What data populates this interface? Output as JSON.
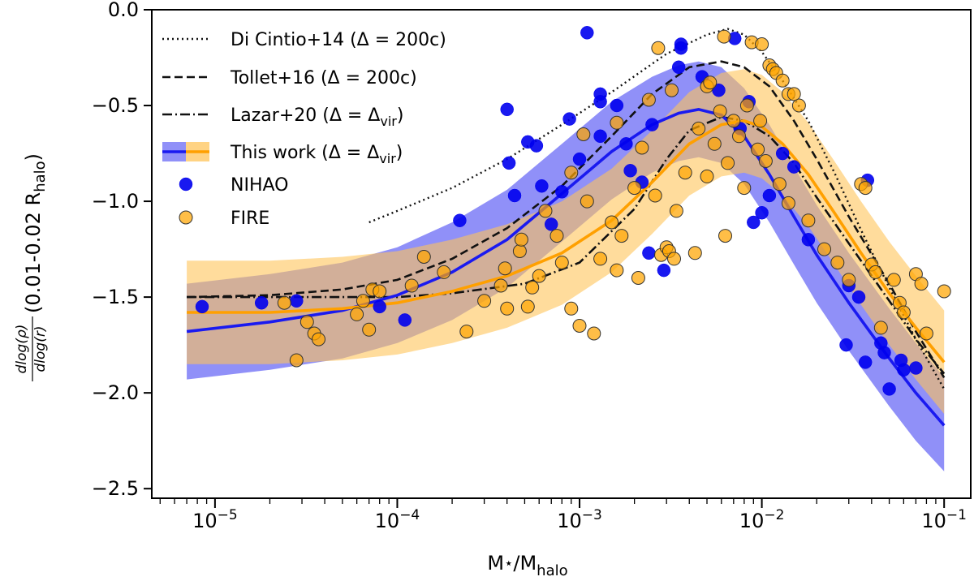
{
  "chart_data": {
    "type": "scatter",
    "xscale": "log",
    "xlim": [
      4.5e-06,
      0.14
    ],
    "ylim": [
      -2.55,
      0.0
    ],
    "xlabel": "M⋆/Mhalo",
    "xlabel_main": "M",
    "xlabel_star": "⋆",
    "xlabel_slash": "/M",
    "xlabel_sub": "halo",
    "ylabel_frac_num": "dlog(ρ)",
    "ylabel_frac_den": "dlog(r)",
    "ylabel_text": "(0.01-0.02 R",
    "ylabel_sub": "halo",
    "ylabel_close": ")",
    "x_ticks": [
      {
        "value": 1e-05,
        "base": "10",
        "exp": "−5"
      },
      {
        "value": 0.0001,
        "base": "10",
        "exp": "−4"
      },
      {
        "value": 0.001,
        "base": "10",
        "exp": "−3"
      },
      {
        "value": 0.01,
        "base": "10",
        "exp": "−2"
      },
      {
        "value": 0.1,
        "base": "10",
        "exp": "−1"
      }
    ],
    "y_ticks": [
      {
        "value": 0.0,
        "label": "0.0"
      },
      {
        "value": -0.5,
        "label": "−0.5"
      },
      {
        "value": -1.0,
        "label": "−1.0"
      },
      {
        "value": -1.5,
        "label": "−1.5"
      },
      {
        "value": -2.0,
        "label": "−2.0"
      },
      {
        "value": -2.5,
        "label": "−2.5"
      }
    ],
    "legend": {
      "position": "top-left",
      "entries": [
        {
          "text": "Di Cintio+14 (Δ = 200c)",
          "style": "dotted"
        },
        {
          "text": "Tollet+16 (Δ = 200c)",
          "style": "dashed"
        },
        {
          "text": "Lazar+20 (Δ = Δ",
          "sub": "vir",
          "close": ")",
          "style": "dashdot"
        },
        {
          "text": "This work (Δ = Δ",
          "sub": "vir",
          "close": ")",
          "style": "band"
        },
        {
          "text": "NIHAO",
          "style": "blue-marker"
        },
        {
          "text": "FIRE",
          "style": "orange-marker"
        }
      ]
    },
    "colors": {
      "nihao": "#0000ee",
      "fire": "#ffa500",
      "blue_line": "#1a1af0",
      "orange_line": "#ffa000",
      "blue_band": "#6b6bf5",
      "orange_band": "#ffc45a",
      "overlap": "#a06e6e"
    },
    "series_lines": [
      {
        "name": "Di Cintio+14 (Δ = 200c)",
        "style": "dotted",
        "x": [
          7e-05,
          0.0001,
          0.0002,
          0.0004,
          0.0008,
          0.0015,
          0.003,
          0.005,
          0.0065,
          0.008,
          0.01,
          0.013,
          0.018,
          0.025,
          0.035,
          0.05,
          0.07,
          0.1
        ],
        "y": [
          -1.11,
          -1.05,
          -0.93,
          -0.78,
          -0.6,
          -0.43,
          -0.23,
          -0.13,
          -0.1,
          -0.13,
          -0.22,
          -0.37,
          -0.58,
          -0.85,
          -1.15,
          -1.45,
          -1.72,
          -1.98
        ]
      },
      {
        "name": "Tollet+16 (Δ = 200c)",
        "style": "dashed",
        "x": [
          7e-06,
          2e-05,
          5e-05,
          0.0001,
          0.0002,
          0.0004,
          0.0008,
          0.0015,
          0.0025,
          0.004,
          0.006,
          0.008,
          0.011,
          0.015,
          0.02,
          0.03,
          0.05,
          0.07,
          0.1
        ],
        "y": [
          -1.5,
          -1.49,
          -1.46,
          -1.41,
          -1.3,
          -1.14,
          -0.92,
          -0.66,
          -0.44,
          -0.3,
          -0.27,
          -0.3,
          -0.4,
          -0.58,
          -0.78,
          -1.08,
          -1.43,
          -1.68,
          -1.92
        ]
      },
      {
        "name": "Lazar+20 (Δ = Δvir)",
        "style": "dashdot",
        "x": [
          7e-06,
          2e-05,
          5e-05,
          0.0001,
          0.0002,
          0.0005,
          0.001,
          0.002,
          0.003,
          0.004,
          0.006,
          0.008,
          0.011,
          0.015,
          0.02,
          0.03,
          0.05,
          0.07,
          0.1
        ],
        "y": [
          -1.5,
          -1.5,
          -1.5,
          -1.5,
          -1.48,
          -1.43,
          -1.32,
          -1.04,
          -0.78,
          -0.63,
          -0.56,
          -0.58,
          -0.66,
          -0.8,
          -0.98,
          -1.22,
          -1.52,
          -1.72,
          -1.9
        ]
      },
      {
        "name": "This work NIHAO",
        "style": "solid-blue",
        "x": [
          7e-06,
          2e-05,
          5e-05,
          0.0001,
          0.0002,
          0.0004,
          0.0008,
          0.0015,
          0.0025,
          0.0035,
          0.0045,
          0.006,
          0.008,
          0.011,
          0.015,
          0.02,
          0.03,
          0.05,
          0.07,
          0.1
        ],
        "y": [
          -1.68,
          -1.63,
          -1.57,
          -1.49,
          -1.37,
          -1.2,
          -0.96,
          -0.74,
          -0.6,
          -0.54,
          -0.52,
          -0.55,
          -0.66,
          -0.86,
          -1.08,
          -1.28,
          -1.53,
          -1.82,
          -2.0,
          -2.17
        ]
      },
      {
        "name": "This work FIRE",
        "style": "solid-orange",
        "x": [
          7e-06,
          2e-05,
          5e-05,
          0.0001,
          0.0002,
          0.0004,
          0.0008,
          0.0015,
          0.0025,
          0.004,
          0.006,
          0.008,
          0.01,
          0.013,
          0.018,
          0.025,
          0.035,
          0.05,
          0.07,
          0.1
        ],
        "y": [
          -1.58,
          -1.58,
          -1.56,
          -1.53,
          -1.47,
          -1.39,
          -1.27,
          -1.1,
          -0.9,
          -0.7,
          -0.6,
          -0.58,
          -0.61,
          -0.7,
          -0.86,
          -1.06,
          -1.27,
          -1.48,
          -1.66,
          -1.84
        ]
      }
    ],
    "bands": [
      {
        "name": "NIHAO band",
        "color_key": "blue_band",
        "x": [
          7e-06,
          2e-05,
          5e-05,
          0.0001,
          0.0002,
          0.0004,
          0.0008,
          0.0015,
          0.0025,
          0.0035,
          0.0045,
          0.006,
          0.008,
          0.011,
          0.015,
          0.02,
          0.03,
          0.05,
          0.07,
          0.1
        ],
        "upper": [
          -1.43,
          -1.38,
          -1.32,
          -1.24,
          -1.11,
          -0.94,
          -0.7,
          -0.48,
          -0.35,
          -0.29,
          -0.27,
          -0.3,
          -0.41,
          -0.6,
          -0.82,
          -1.02,
          -1.27,
          -1.56,
          -1.74,
          -1.92
        ],
        "lower": [
          -1.93,
          -1.88,
          -1.82,
          -1.74,
          -1.62,
          -1.45,
          -1.21,
          -0.99,
          -0.85,
          -0.79,
          -0.77,
          -0.8,
          -0.91,
          -1.11,
          -1.33,
          -1.53,
          -1.78,
          -2.07,
          -2.25,
          -2.41
        ]
      },
      {
        "name": "FIRE band",
        "color_key": "orange_band",
        "x": [
          7e-06,
          2e-05,
          5e-05,
          0.0001,
          0.0002,
          0.0004,
          0.0008,
          0.0015,
          0.0025,
          0.004,
          0.006,
          0.008,
          0.01,
          0.013,
          0.018,
          0.025,
          0.035,
          0.05,
          0.07,
          0.1
        ],
        "upper": [
          -1.31,
          -1.31,
          -1.29,
          -1.26,
          -1.2,
          -1.12,
          -1.0,
          -0.83,
          -0.63,
          -0.43,
          -0.33,
          -0.31,
          -0.34,
          -0.43,
          -0.59,
          -0.79,
          -1.0,
          -1.21,
          -1.39,
          -1.57
        ],
        "lower": [
          -1.85,
          -1.85,
          -1.83,
          -1.8,
          -1.74,
          -1.66,
          -1.54,
          -1.37,
          -1.17,
          -0.97,
          -0.87,
          -0.85,
          -0.88,
          -0.97,
          -1.13,
          -1.33,
          -1.54,
          -1.75,
          -1.93,
          -2.11
        ]
      }
    ],
    "series_points": [
      {
        "name": "NIHAO",
        "color_key": "nihao",
        "points": [
          [
            8.5e-06,
            -1.55
          ],
          [
            1.8e-05,
            -1.53
          ],
          [
            2.8e-05,
            -1.52
          ],
          [
            8e-05,
            -1.55
          ],
          [
            0.00011,
            -1.62
          ],
          [
            0.00022,
            -1.1
          ],
          [
            0.0004,
            -0.52
          ],
          [
            0.00041,
            -0.8
          ],
          [
            0.00044,
            -0.97
          ],
          [
            0.00052,
            -0.69
          ],
          [
            0.00058,
            -0.71
          ],
          [
            0.00062,
            -0.92
          ],
          [
            0.0007,
            -1.12
          ],
          [
            0.0008,
            -0.95
          ],
          [
            0.00088,
            -0.57
          ],
          [
            0.001,
            -0.78
          ],
          [
            0.0011,
            -0.12
          ],
          [
            0.0013,
            -0.44
          ],
          [
            0.0013,
            -0.48
          ],
          [
            0.0013,
            -0.66
          ],
          [
            0.0016,
            -0.5
          ],
          [
            0.0018,
            -0.7
          ],
          [
            0.0022,
            -0.9
          ],
          [
            0.0024,
            -1.27
          ],
          [
            0.0029,
            -1.36
          ],
          [
            0.0035,
            -0.3
          ],
          [
            0.0036,
            -0.18
          ],
          [
            0.0036,
            -0.2
          ],
          [
            0.0047,
            -0.35
          ],
          [
            0.0071,
            -0.15
          ],
          [
            0.009,
            -1.11
          ],
          [
            0.01,
            -1.06
          ],
          [
            0.011,
            -0.97
          ],
          [
            0.013,
            -0.75
          ],
          [
            0.015,
            -0.82
          ],
          [
            0.018,
            -1.2
          ],
          [
            0.029,
            -1.75
          ],
          [
            0.03,
            -1.44
          ],
          [
            0.034,
            -1.5
          ],
          [
            0.037,
            -1.84
          ],
          [
            0.038,
            -0.89
          ],
          [
            0.045,
            -1.74
          ],
          [
            0.047,
            -1.79
          ],
          [
            0.05,
            -1.98
          ],
          [
            0.058,
            -1.83
          ],
          [
            0.06,
            -1.88
          ],
          [
            0.07,
            -1.87
          ],
          [
            0.0019,
            -0.84
          ],
          [
            0.0025,
            -0.6
          ],
          [
            0.0058,
            -0.42
          ],
          [
            0.0076,
            -0.62
          ],
          [
            0.0085,
            -0.48
          ]
        ]
      },
      {
        "name": "FIRE",
        "color_key": "fire",
        "points": [
          [
            2.4e-05,
            -1.53
          ],
          [
            2.8e-05,
            -1.83
          ],
          [
            3.2e-05,
            -1.63
          ],
          [
            3.5e-05,
            -1.69
          ],
          [
            3.7e-05,
            -1.72
          ],
          [
            6.5e-05,
            -1.52
          ],
          [
            7e-05,
            -1.67
          ],
          [
            7.3e-05,
            -1.46
          ],
          [
            8e-05,
            -1.47
          ],
          [
            0.00024,
            -1.68
          ],
          [
            0.0003,
            -1.52
          ],
          [
            0.00037,
            -1.44
          ],
          [
            0.0004,
            -1.56
          ],
          [
            0.00047,
            -1.26
          ],
          [
            0.00052,
            -1.55
          ],
          [
            0.0006,
            -1.39
          ],
          [
            0.0008,
            -1.32
          ],
          [
            0.0009,
            -1.56
          ],
          [
            0.001,
            -1.65
          ],
          [
            0.0012,
            -1.69
          ],
          [
            0.0013,
            -1.3
          ],
          [
            0.0016,
            -1.36
          ],
          [
            0.0021,
            -1.4
          ],
          [
            0.0026,
            -0.97
          ],
          [
            0.0028,
            -1.28
          ],
          [
            0.003,
            -1.24
          ],
          [
            0.0031,
            -1.26
          ],
          [
            0.0033,
            -1.3
          ],
          [
            0.0034,
            -1.05
          ],
          [
            0.0043,
            -1.27
          ],
          [
            0.005,
            -0.87
          ],
          [
            0.0063,
            -1.18
          ],
          [
            0.0062,
            -0.14
          ],
          [
            0.007,
            -0.58
          ],
          [
            0.008,
            -0.93
          ],
          [
            0.0088,
            -0.17
          ],
          [
            0.01,
            -0.18
          ],
          [
            0.011,
            -0.29
          ],
          [
            0.0115,
            -0.31
          ],
          [
            0.012,
            -0.33
          ],
          [
            0.013,
            -0.37
          ],
          [
            0.014,
            -0.44
          ],
          [
            0.016,
            -0.5
          ],
          [
            0.015,
            -0.44
          ],
          [
            0.035,
            -0.91
          ],
          [
            0.037,
            -0.93
          ],
          [
            0.04,
            -1.33
          ],
          [
            0.042,
            -1.37
          ],
          [
            0.045,
            -1.66
          ],
          [
            0.053,
            -1.41
          ],
          [
            0.057,
            -1.53
          ],
          [
            0.06,
            -1.58
          ],
          [
            0.07,
            -1.38
          ],
          [
            0.075,
            -1.43
          ],
          [
            0.08,
            -1.69
          ],
          [
            0.1,
            -1.47
          ],
          [
            0.0027,
            -0.2
          ],
          [
            0.005,
            -0.4
          ],
          [
            0.0015,
            -1.11
          ],
          [
            0.002,
            -0.93
          ],
          [
            0.0009,
            -0.85
          ],
          [
            0.0011,
            -1.0
          ],
          [
            0.0022,
            -0.72
          ],
          [
            0.0038,
            -0.85
          ],
          [
            0.0045,
            -0.62
          ],
          [
            0.0055,
            -0.7
          ],
          [
            0.0065,
            -0.8
          ],
          [
            0.0075,
            -0.66
          ],
          [
            0.0095,
            -0.73
          ],
          [
            0.0125,
            -0.91
          ],
          [
            0.014,
            -1.01
          ],
          [
            0.018,
            -1.1
          ],
          [
            0.022,
            -1.25
          ],
          [
            0.026,
            -1.32
          ],
          [
            0.03,
            -1.41
          ],
          [
            0.00065,
            -1.05
          ],
          [
            0.00075,
            -1.18
          ],
          [
            0.0017,
            -1.18
          ],
          [
            0.00048,
            -1.2
          ],
          [
            0.00039,
            -1.35
          ],
          [
            0.00055,
            -1.45
          ],
          [
            0.00018,
            -1.37
          ],
          [
            0.00014,
            -1.29
          ],
          [
            0.00012,
            -1.44
          ],
          [
            6e-05,
            -1.59
          ],
          [
            0.00105,
            -0.65
          ],
          [
            0.0016,
            -0.59
          ],
          [
            0.0024,
            -0.47
          ],
          [
            0.0032,
            -0.42
          ],
          [
            0.0052,
            -0.38
          ],
          [
            0.0059,
            -0.53
          ],
          [
            0.0083,
            -0.5
          ],
          [
            0.0098,
            -0.58
          ],
          [
            0.0105,
            -0.79
          ]
        ]
      }
    ]
  }
}
